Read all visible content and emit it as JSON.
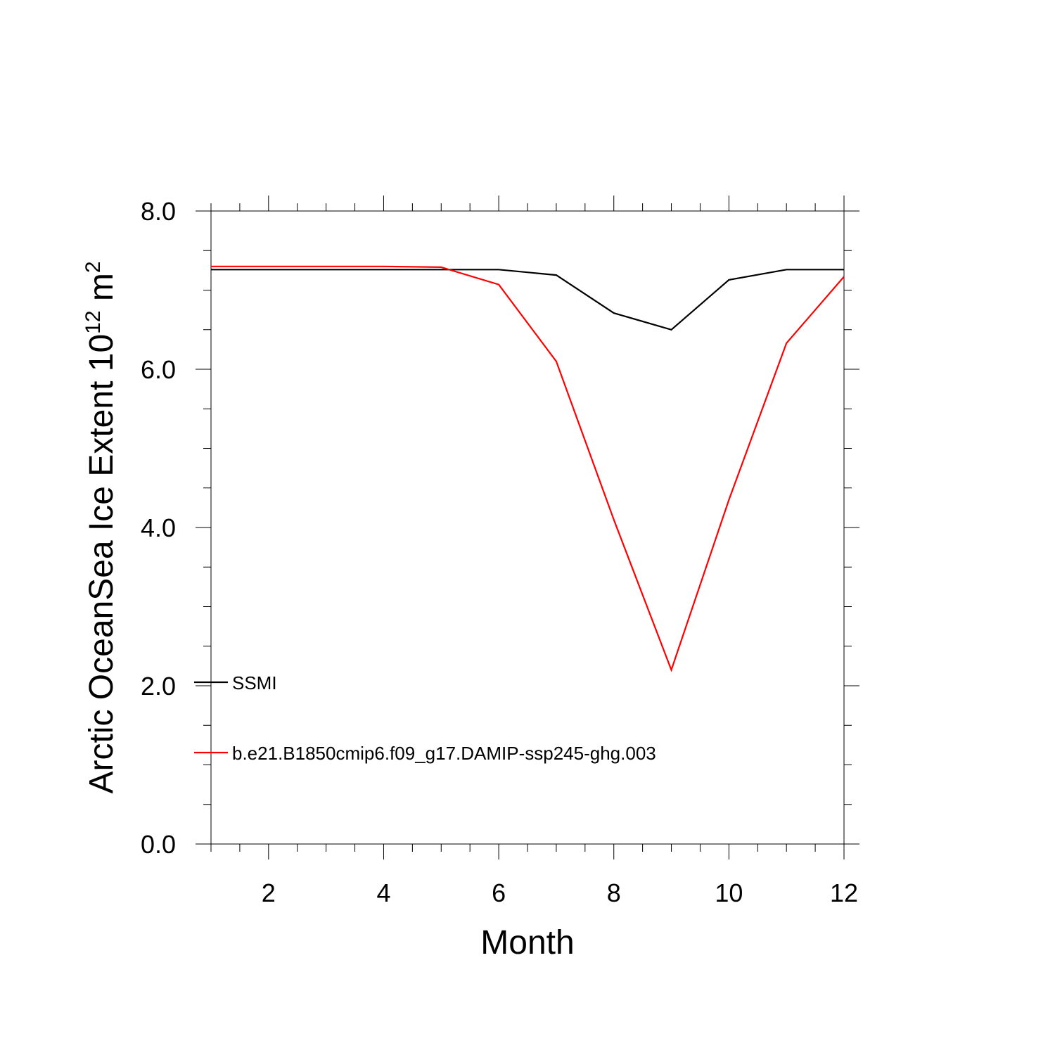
{
  "chart_data": {
    "type": "line",
    "title": "",
    "xlabel": "Month",
    "ylabel": {
      "prefix": "Arctic OceanSea Ice Extent 10",
      "sup1": "12",
      "mid": " m",
      "sup2": "2"
    },
    "xlim": [
      1,
      12
    ],
    "ylim": [
      0,
      8
    ],
    "x_major_ticks": [
      2,
      4,
      6,
      8,
      10,
      12
    ],
    "x_tick_labels": [
      "2",
      "4",
      "6",
      "8",
      "10",
      "12"
    ],
    "y_major_ticks": [
      0,
      2,
      4,
      6,
      8
    ],
    "y_tick_labels": [
      "0.0",
      "2.0",
      "4.0",
      "6.0",
      "8.0"
    ],
    "x_minor_step": 0.5,
    "y_minor_step": 0.5,
    "grid": false,
    "legend_position": "lower-left",
    "x": [
      1,
      2,
      3,
      4,
      5,
      6,
      7,
      8,
      9,
      10,
      11,
      12
    ],
    "series": [
      {
        "name": "SSMI",
        "color": "#000000",
        "values": [
          7.26,
          7.26,
          7.26,
          7.26,
          7.26,
          7.26,
          7.19,
          6.71,
          6.5,
          7.13,
          7.26,
          7.26
        ]
      },
      {
        "name": "b.e21.B1850cmip6.f09_g17.DAMIP-ssp245-ghg.003",
        "color": "#ff0000",
        "values": [
          7.3,
          7.3,
          7.3,
          7.3,
          7.29,
          7.07,
          6.1,
          4.1,
          2.2,
          4.35,
          6.33,
          7.17
        ]
      }
    ]
  }
}
